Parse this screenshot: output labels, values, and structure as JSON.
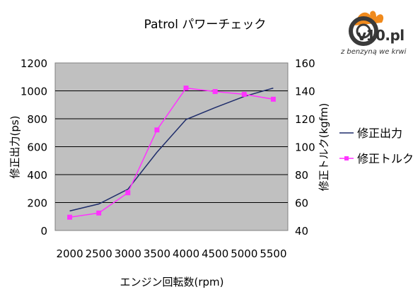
{
  "chart_data": {
    "type": "line",
    "title": "Patrol パワーチェック",
    "xlabel": "エンジン回転数(rpm)",
    "ylabel_left": "修正出力(ps)",
    "ylabel_right": "修正トルク(kgfm)",
    "categories": [
      "2000",
      "2500",
      "3000",
      "3500",
      "4000",
      "4500",
      "5000",
      "5500"
    ],
    "y_left_ticks": [
      "0",
      "200",
      "400",
      "600",
      "800",
      "1000",
      "1200"
    ],
    "y_right_ticks": [
      "40",
      "60",
      "80",
      "100",
      "120",
      "140",
      "160"
    ],
    "ylim_left": [
      0,
      1200
    ],
    "ylim_right": [
      40,
      160
    ],
    "grid": true,
    "legend_position": "right",
    "series": [
      {
        "name": "修正出力",
        "axis": "left",
        "color": "#1f2d6b",
        "marker": "none",
        "values": [
          140,
          190,
          295,
          560,
          795,
          880,
          960,
          1020
        ]
      },
      {
        "name": "修正トルク",
        "axis": "right",
        "color": "#ff33ff",
        "marker": "square",
        "values": [
          49.5,
          52.5,
          67,
          112,
          142,
          139.5,
          137.5,
          134
        ]
      }
    ]
  },
  "logo": {
    "brand": "v10.pl",
    "tagline": "z benzyną we krwi"
  }
}
